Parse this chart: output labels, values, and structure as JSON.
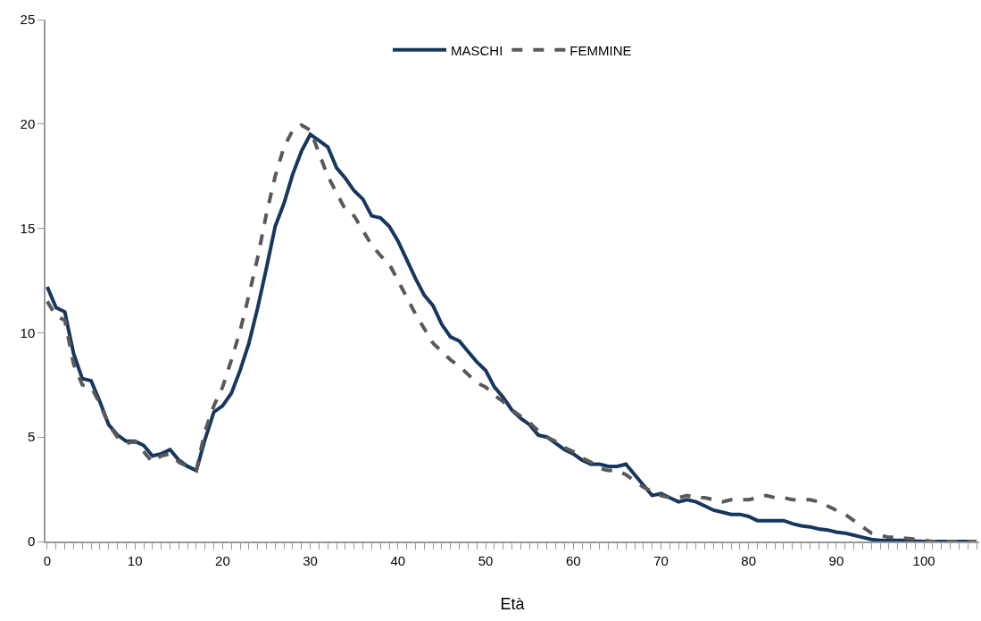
{
  "chart_data": {
    "type": "line",
    "xlabel": "Età",
    "xlim": [
      -0.2,
      106.3
    ],
    "ylim": [
      0,
      25
    ],
    "xticks": [
      0,
      10,
      20,
      30,
      40,
      50,
      60,
      70,
      80,
      90,
      100
    ],
    "yticks": [
      0,
      5,
      10,
      15,
      20,
      25
    ],
    "x": [
      0,
      1,
      2,
      3,
      4,
      5,
      6,
      7,
      8,
      9,
      10,
      11,
      12,
      13,
      14,
      15,
      16,
      17,
      18,
      19,
      20,
      21,
      22,
      23,
      24,
      25,
      26,
      27,
      28,
      29,
      30,
      31,
      32,
      33,
      34,
      35,
      36,
      37,
      38,
      39,
      40,
      41,
      42,
      43,
      44,
      45,
      46,
      47,
      48,
      49,
      50,
      51,
      52,
      53,
      54,
      55,
      56,
      57,
      58,
      59,
      60,
      61,
      62,
      63,
      64,
      65,
      66,
      67,
      68,
      69,
      70,
      71,
      72,
      73,
      74,
      75,
      76,
      77,
      78,
      79,
      80,
      81,
      82,
      83,
      84,
      85,
      86,
      87,
      88,
      89,
      90,
      91,
      92,
      93,
      94,
      95,
      96,
      97,
      98,
      99,
      100,
      101,
      102,
      103,
      104,
      105,
      106
    ],
    "legend": "top",
    "marker": "none",
    "series": [
      {
        "name": "MASCHI",
        "color": "#17375e",
        "line_style": "solid",
        "values": [
          12.2,
          11.2,
          11.0,
          9.0,
          7.8,
          7.7,
          6.7,
          5.6,
          5.1,
          4.8,
          4.8,
          4.6,
          4.1,
          4.2,
          4.4,
          3.9,
          3.6,
          3.4,
          4.9,
          6.2,
          6.5,
          7.1,
          8.2,
          9.5,
          11.2,
          13.1,
          15.1,
          16.2,
          17.6,
          18.7,
          19.5,
          19.2,
          18.9,
          17.9,
          17.4,
          16.8,
          16.4,
          15.6,
          15.5,
          15.1,
          14.4,
          13.5,
          12.6,
          11.8,
          11.3,
          10.4,
          9.8,
          9.6,
          9.1,
          8.6,
          8.2,
          7.4,
          6.9,
          6.3,
          5.9,
          5.6,
          5.1,
          5.0,
          4.7,
          4.4,
          4.2,
          3.9,
          3.7,
          3.7,
          3.6,
          3.6,
          3.7,
          3.2,
          2.7,
          2.2,
          2.3,
          2.1,
          1.9,
          2.0,
          1.9,
          1.7,
          1.5,
          1.4,
          1.3,
          1.3,
          1.2,
          1.0,
          1.0,
          1.0,
          1.0,
          0.85,
          0.75,
          0.7,
          0.6,
          0.55,
          0.45,
          0.4,
          0.3,
          0.2,
          0.1,
          0.05,
          0.05,
          0.05,
          0.05,
          0.02,
          0,
          0,
          0,
          0,
          0,
          0,
          0
        ]
      },
      {
        "name": "FEMMINE",
        "color": "#595959",
        "line_style": "dashed",
        "values": [
          11.5,
          10.8,
          10.6,
          8.5,
          7.5,
          7.4,
          6.6,
          5.6,
          5.0,
          4.7,
          4.8,
          4.3,
          3.8,
          4.1,
          4.2,
          3.8,
          3.6,
          3.4,
          5.3,
          6.5,
          7.4,
          8.7,
          10.1,
          11.8,
          13.6,
          15.7,
          17.5,
          18.9,
          19.7,
          19.95,
          19.7,
          18.6,
          17.5,
          16.7,
          15.9,
          15.6,
          14.9,
          14.2,
          13.7,
          13.3,
          12.5,
          11.7,
          10.9,
          10.2,
          9.5,
          9.1,
          8.7,
          8.4,
          8.0,
          7.6,
          7.4,
          7.0,
          6.7,
          6.3,
          6.0,
          5.7,
          5.3,
          5.0,
          4.8,
          4.5,
          4.3,
          4.0,
          3.8,
          3.5,
          3.4,
          3.4,
          3.2,
          2.9,
          2.6,
          2.4,
          2.2,
          2.1,
          2.1,
          2.2,
          2.1,
          2.1,
          2.0,
          1.9,
          2.0,
          2.0,
          2.0,
          2.1,
          2.2,
          2.1,
          2.1,
          2.0,
          2.0,
          2.0,
          1.9,
          1.7,
          1.5,
          1.3,
          1.0,
          0.7,
          0.4,
          0.3,
          0.2,
          0.2,
          0.15,
          0.1,
          0.05,
          0,
          0,
          0,
          0,
          0,
          0
        ]
      }
    ]
  }
}
